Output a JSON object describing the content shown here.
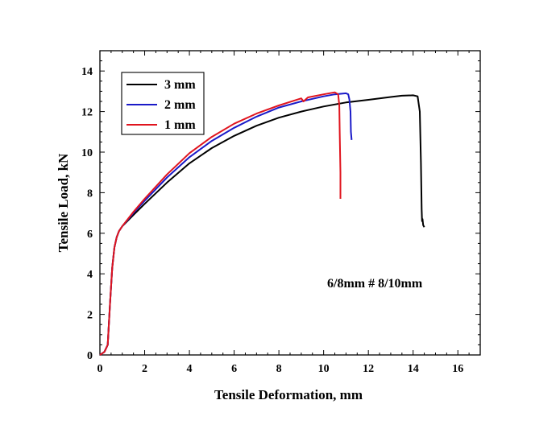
{
  "chart_data": {
    "type": "line",
    "xlabel": "Tensile Deformation, mm",
    "ylabel": "Tensile Load, kN",
    "xlim": [
      0,
      17
    ],
    "ylim": [
      0,
      15
    ],
    "xticks": [
      0,
      2,
      4,
      6,
      8,
      10,
      12,
      14,
      16
    ],
    "yticks": [
      0,
      2,
      4,
      6,
      8,
      10,
      12,
      14
    ],
    "annotation": "6/8mm # 8/10mm",
    "legend_position": "top-left",
    "grid": false,
    "series": [
      {
        "name": "3 mm",
        "color": "#000000",
        "x": [
          0,
          0.2,
          0.35,
          0.45,
          0.55,
          0.65,
          0.75,
          0.85,
          1.0,
          1.5,
          2,
          3,
          4,
          5,
          6,
          7,
          8,
          9,
          10,
          11,
          12,
          13,
          13.5,
          14.0,
          14.2,
          14.3,
          14.35,
          14.38,
          14.4,
          14.42,
          14.45,
          14.5
        ],
        "y": [
          0,
          0.15,
          0.5,
          2.5,
          4.3,
          5.3,
          5.8,
          6.1,
          6.35,
          6.9,
          7.45,
          8.5,
          9.45,
          10.2,
          10.8,
          11.3,
          11.7,
          12.0,
          12.25,
          12.45,
          12.58,
          12.72,
          12.78,
          12.8,
          12.75,
          12.0,
          9.5,
          7.2,
          6.6,
          6.7,
          6.4,
          6.3
        ]
      },
      {
        "name": "2 mm",
        "color": "#1a1ac8",
        "x": [
          0,
          0.2,
          0.35,
          0.45,
          0.55,
          0.65,
          0.75,
          0.85,
          1.0,
          1.5,
          2,
          3,
          4,
          5,
          6,
          7,
          8,
          9,
          10,
          10.5,
          11.0,
          11.1,
          11.15,
          11.2,
          11.22,
          11.25
        ],
        "y": [
          0,
          0.15,
          0.5,
          2.5,
          4.3,
          5.3,
          5.8,
          6.1,
          6.35,
          7.0,
          7.6,
          8.75,
          9.75,
          10.55,
          11.2,
          11.75,
          12.2,
          12.5,
          12.75,
          12.85,
          12.9,
          12.85,
          12.6,
          12.0,
          11.0,
          10.6
        ]
      },
      {
        "name": "1 mm",
        "color": "#e0141e",
        "x": [
          0,
          0.2,
          0.35,
          0.45,
          0.55,
          0.65,
          0.75,
          0.85,
          1.0,
          1.5,
          2,
          3,
          4,
          5,
          6,
          7,
          8,
          9.0,
          9.1,
          9.2,
          9.3,
          10,
          10.5,
          10.65,
          10.7,
          10.72,
          10.75,
          10.75
        ],
        "y": [
          0,
          0.15,
          0.5,
          2.5,
          4.3,
          5.3,
          5.8,
          6.1,
          6.35,
          7.05,
          7.7,
          8.9,
          9.95,
          10.75,
          11.4,
          11.9,
          12.3,
          12.65,
          12.5,
          12.6,
          12.7,
          12.85,
          12.95,
          12.85,
          12.3,
          11.0,
          9.0,
          7.7
        ]
      }
    ]
  }
}
